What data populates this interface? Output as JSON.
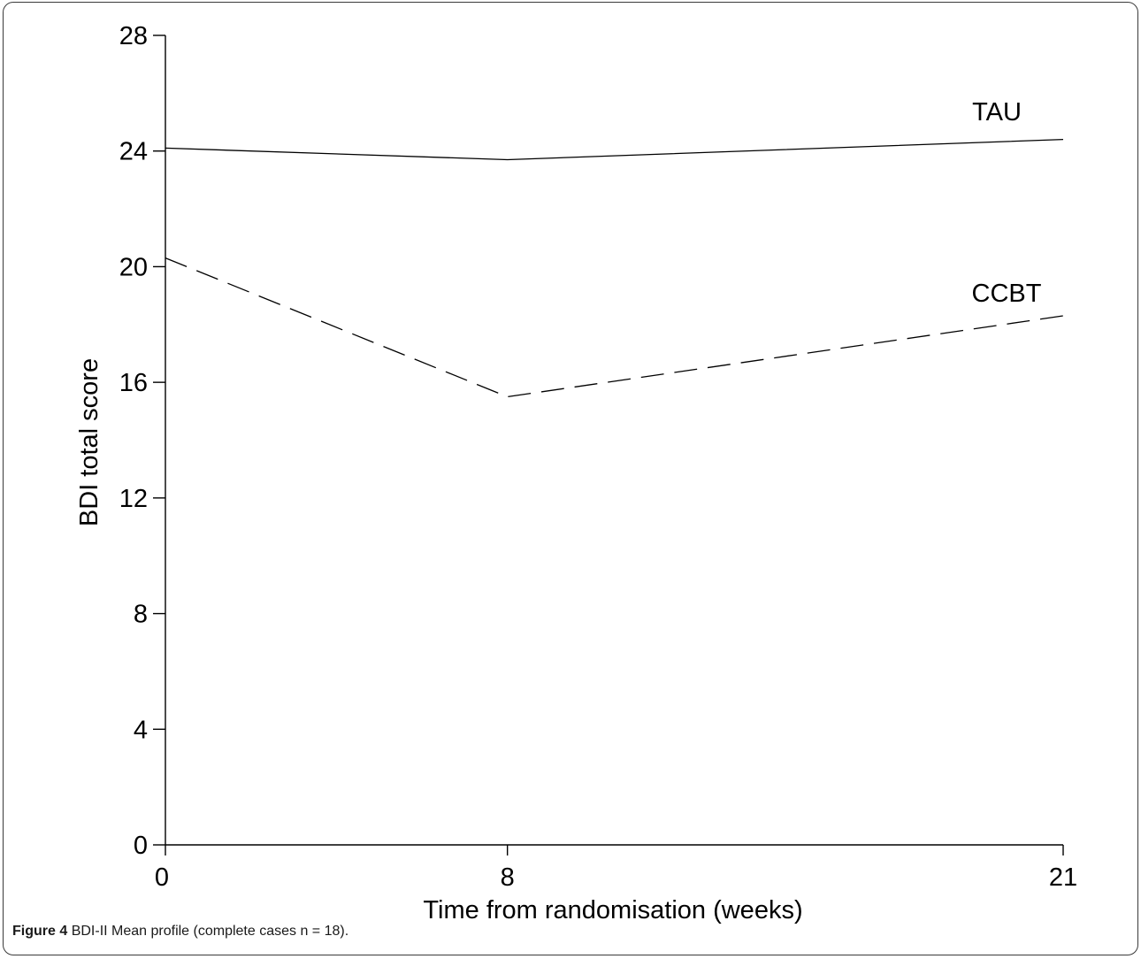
{
  "caption": {
    "label": "Figure 4",
    "text": "BDI-II Mean profile (complete cases n = 18)."
  },
  "chart_data": {
    "type": "line",
    "title": "",
    "xlabel": "Time from randomisation (weeks)",
    "ylabel": "BDI total score",
    "x": [
      0,
      8,
      21
    ],
    "x_ticks": [
      "0",
      "8",
      "21"
    ],
    "y_ticks": [
      "0",
      "4",
      "8",
      "12",
      "16",
      "20",
      "24",
      "28"
    ],
    "xlim": [
      0,
      21
    ],
    "ylim": [
      0,
      28
    ],
    "grid": false,
    "series": [
      {
        "name": "TAU",
        "values": [
          24.1,
          23.7,
          24.4
        ],
        "style": "solid",
        "color": "#000000"
      },
      {
        "name": "CCBT",
        "values": [
          20.3,
          15.5,
          18.3
        ],
        "style": "dashed",
        "color": "#000000"
      }
    ]
  }
}
